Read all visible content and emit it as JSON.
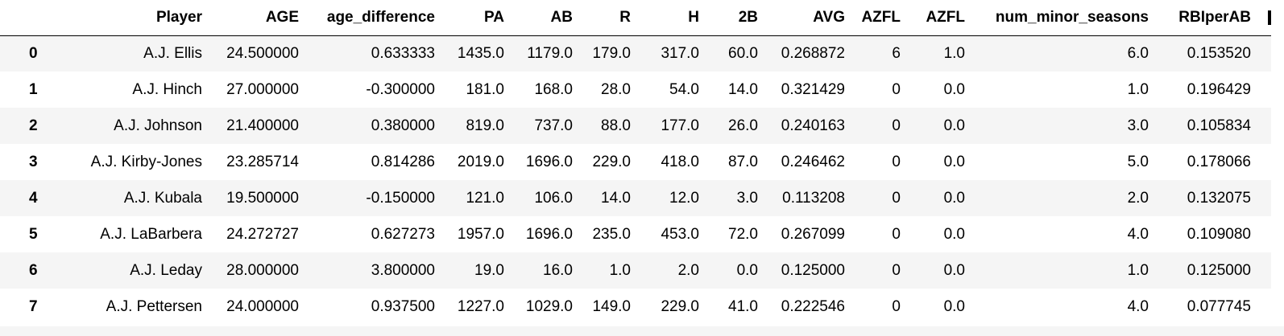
{
  "table": {
    "columns": [
      "",
      "Player",
      "AGE",
      "age_difference",
      "PA",
      "AB",
      "R",
      "H",
      "2B",
      "AVG",
      "AZFL",
      "AZFL",
      "num_minor_seasons",
      "RBIperAB"
    ],
    "rows": [
      {
        "index": "0",
        "cells": [
          "A.J. Ellis",
          "24.500000",
          "0.633333",
          "1435.0",
          "1179.0",
          "179.0",
          "317.0",
          "60.0",
          "0.268872",
          "6",
          "1.0",
          "6.0",
          "0.153520"
        ]
      },
      {
        "index": "1",
        "cells": [
          "A.J. Hinch",
          "27.000000",
          "-0.300000",
          "181.0",
          "168.0",
          "28.0",
          "54.0",
          "14.0",
          "0.321429",
          "0",
          "0.0",
          "1.0",
          "0.196429"
        ]
      },
      {
        "index": "2",
        "cells": [
          "A.J. Johnson",
          "21.400000",
          "0.380000",
          "819.0",
          "737.0",
          "88.0",
          "177.0",
          "26.0",
          "0.240163",
          "0",
          "0.0",
          "3.0",
          "0.105834"
        ]
      },
      {
        "index": "3",
        "cells": [
          "A.J. Kirby-Jones",
          "23.285714",
          "0.814286",
          "2019.0",
          "1696.0",
          "229.0",
          "418.0",
          "87.0",
          "0.246462",
          "0",
          "0.0",
          "5.0",
          "0.178066"
        ]
      },
      {
        "index": "4",
        "cells": [
          "A.J. Kubala",
          "19.500000",
          "-0.150000",
          "121.0",
          "106.0",
          "14.0",
          "12.0",
          "3.0",
          "0.113208",
          "0",
          "0.0",
          "2.0",
          "0.132075"
        ]
      },
      {
        "index": "5",
        "cells": [
          "A.J. LaBarbera",
          "24.272727",
          "0.627273",
          "1957.0",
          "1696.0",
          "235.0",
          "453.0",
          "72.0",
          "0.267099",
          "0",
          "0.0",
          "4.0",
          "0.109080"
        ]
      },
      {
        "index": "6",
        "cells": [
          "A.J. Leday",
          "28.000000",
          "3.800000",
          "19.0",
          "16.0",
          "1.0",
          "2.0",
          "0.0",
          "0.125000",
          "0",
          "0.0",
          "1.0",
          "0.125000"
        ]
      },
      {
        "index": "7",
        "cells": [
          "A.J. Pettersen",
          "24.000000",
          "0.937500",
          "1227.0",
          "1029.0",
          "149.0",
          "229.0",
          "41.0",
          "0.222546",
          "0",
          "0.0",
          "4.0",
          "0.077745"
        ]
      }
    ]
  }
}
